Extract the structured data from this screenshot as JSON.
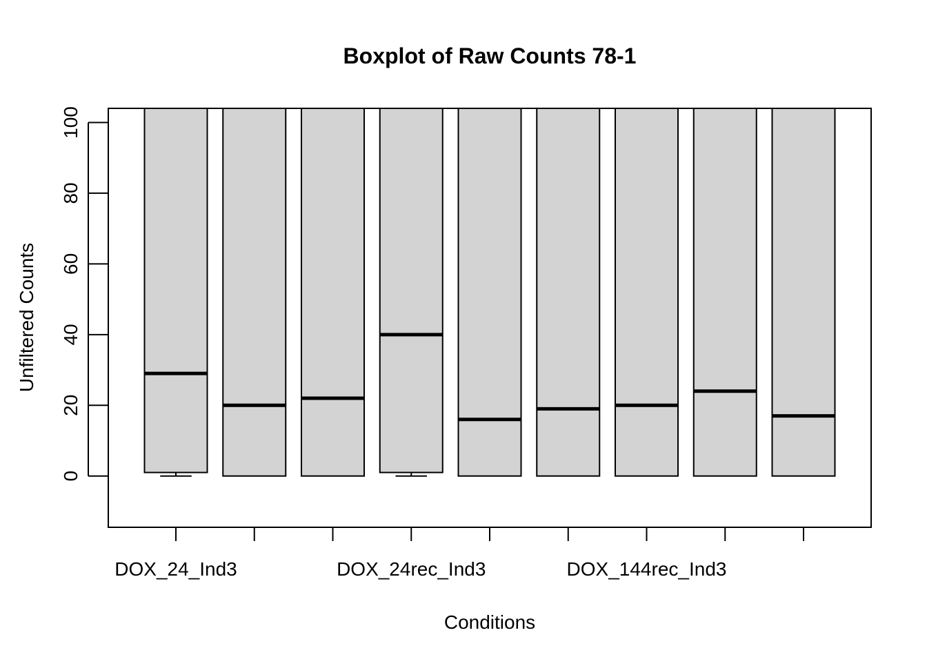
{
  "chart_data": {
    "type": "boxplot",
    "title": "Boxplot of Raw Counts 78-1",
    "xlabel": "Conditions",
    "ylabel": "Unfiltered Counts",
    "ylim": [
      -14.5,
      104
    ],
    "y_ticks": [
      0,
      20,
      40,
      60,
      80,
      100
    ],
    "x_tick_labels": [
      "DOX_24_Ind3",
      "",
      "",
      "DOX_24rec_Ind3",
      "",
      "",
      "DOX_144rec_Ind3",
      "",
      ""
    ],
    "grid": false,
    "box_color": "#d3d3d3",
    "boxes": [
      {
        "lower_whisker": 0,
        "q1": 1,
        "median": 29,
        "q3": 104,
        "upper_whisker": 104
      },
      {
        "lower_whisker": 0,
        "q1": 0,
        "median": 20,
        "q3": 104,
        "upper_whisker": 104
      },
      {
        "lower_whisker": 0,
        "q1": 0,
        "median": 22,
        "q3": 104,
        "upper_whisker": 104
      },
      {
        "lower_whisker": 0,
        "q1": 1,
        "median": 40,
        "q3": 104,
        "upper_whisker": 104
      },
      {
        "lower_whisker": 0,
        "q1": 0,
        "median": 16,
        "q3": 104,
        "upper_whisker": 104
      },
      {
        "lower_whisker": 0,
        "q1": 0,
        "median": 19,
        "q3": 104,
        "upper_whisker": 104
      },
      {
        "lower_whisker": 0,
        "q1": 0,
        "median": 20,
        "q3": 104,
        "upper_whisker": 104
      },
      {
        "lower_whisker": 0,
        "q1": 0,
        "median": 24,
        "q3": 104,
        "upper_whisker": 104
      },
      {
        "lower_whisker": 0,
        "q1": 0,
        "median": 17,
        "q3": 104,
        "upper_whisker": 104
      }
    ]
  }
}
